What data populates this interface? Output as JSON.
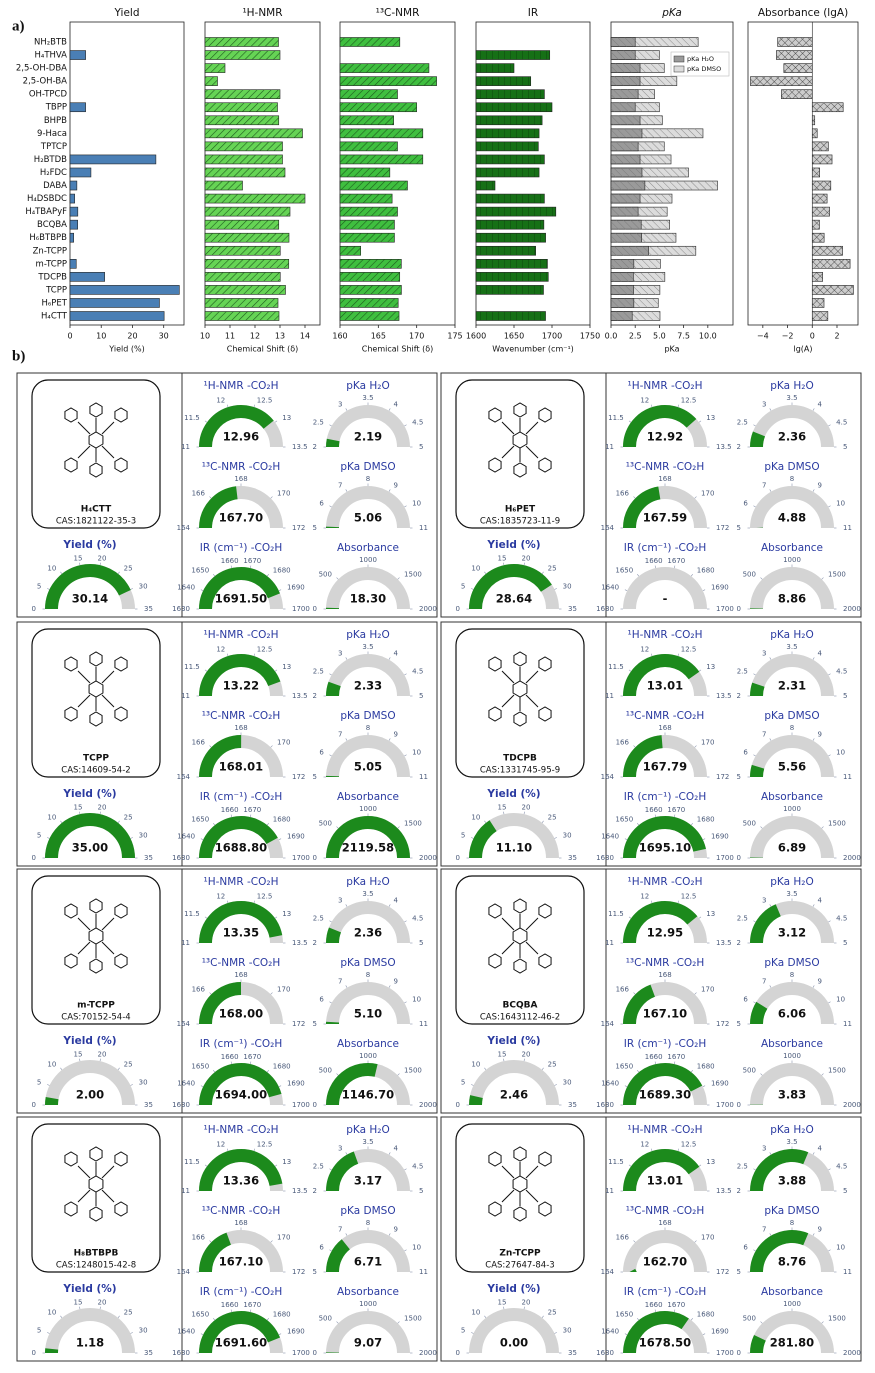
{
  "figure_labels": {
    "a": "a)",
    "b": "b)"
  },
  "chart_data": [
    {
      "type": "barh",
      "title": "Yield",
      "xlabel": "Yield (%)",
      "categories": [
        "NH₂BTB",
        "H₄THVA",
        "2,5-OH-DBA",
        "2,5-OH-BA",
        "OH-TPCD",
        "TBPP",
        "BHPB",
        "9-Haca",
        "TPTCP",
        "H₂BTDB",
        "H₂FDC",
        "DABA",
        "H₄DSBDC",
        "H₄TBAPyF",
        "BCQBA",
        "H₆BTBPB",
        "Zn-TCPP",
        "m-TCPP",
        "TDCPB",
        "TCPP",
        "H₆PET",
        "H₄CTT"
      ],
      "values": [
        0,
        5,
        0,
        0,
        0,
        5,
        0,
        0,
        0,
        27.5,
        6.7,
        2.2,
        1.5,
        2.5,
        2.46,
        1.18,
        0,
        2,
        11.1,
        35,
        28.64,
        30.14
      ],
      "color": "#4a7fb5",
      "xlim": [
        0,
        36.5
      ],
      "xticks": [
        0,
        10,
        20,
        30
      ]
    },
    {
      "type": "barh",
      "title": "¹H-NMR",
      "xlabel": "Chemical Shift (δ)",
      "values": [
        12.94,
        13,
        10.8,
        10.5,
        13,
        12.9,
        12.95,
        13.9,
        13.1,
        13.1,
        13.2,
        11.5,
        14,
        13.4,
        12.95,
        13.36,
        13.01,
        13.35,
        13.01,
        13.22,
        12.92,
        12.96
      ],
      "color": "#66d455",
      "hatch": "////",
      "xlim": [
        10,
        14.6
      ],
      "xticks": [
        10,
        11,
        12,
        13,
        14
      ]
    },
    {
      "type": "barh",
      "title": "¹³C-NMR",
      "xlabel": "Chemical Shift (δ)",
      "values": [
        167.8,
        null,
        171.6,
        172.6,
        167.5,
        170,
        167,
        170.8,
        167.5,
        170.8,
        166.5,
        168.8,
        166.8,
        167.5,
        167.1,
        167.1,
        162.7,
        168,
        167.79,
        168.01,
        167.59,
        167.7
      ],
      "color": "#3fbf3f",
      "hatch": "////",
      "xlim": [
        160,
        175
      ],
      "xticks": [
        160,
        165,
        170,
        175
      ]
    },
    {
      "type": "barh",
      "title": "IR",
      "xlabel": "Wavenumber (cm⁻¹)",
      "values": [
        null,
        1697,
        1650,
        1672,
        1690,
        1700,
        1687,
        1683,
        1682,
        1690,
        1683,
        1625,
        1690,
        1705,
        1689.3,
        1691.6,
        1678.5,
        1694,
        1695.1,
        1688.8,
        null,
        1691.5
      ],
      "color": "#167016",
      "hatch": "||",
      "xlim": [
        1600,
        1750
      ],
      "xticks": [
        1600,
        1650,
        1700,
        1750
      ]
    },
    {
      "type": "barh",
      "title": "pKa",
      "xlabel": "pKa",
      "legend": "upper right",
      "hatch": "\\\\",
      "series": [
        {
          "name": "pKa H₂O",
          "color": "#9a9a9a",
          "values": [
            2.5,
            2.5,
            3,
            3,
            2.8,
            2.5,
            3,
            3.2,
            2.8,
            3,
            3.2,
            3.5,
            3,
            2.8,
            3.12,
            3.17,
            3.88,
            2.36,
            2.31,
            2.33,
            2.36,
            2.19
          ]
        },
        {
          "name": "pKa DMSO",
          "color": "#dcdcdc",
          "values": [
            9,
            5,
            5.5,
            6.8,
            4.5,
            5,
            5.3,
            9.5,
            5.5,
            6.2,
            8,
            11,
            6.3,
            5.8,
            6.06,
            6.71,
            8.76,
            5.1,
            5.56,
            5.05,
            4.88,
            5.06
          ]
        }
      ],
      "xlim": [
        0,
        12.6
      ],
      "xticks": [
        {
          "value": 0,
          "label": "0.0"
        },
        {
          "value": 2.5,
          "label": "2.5"
        },
        {
          "value": 5,
          "label": "5.0"
        },
        {
          "value": 7.5,
          "label": "7.5"
        },
        {
          "value": 10,
          "label": "10.0"
        }
      ]
    },
    {
      "type": "barh",
      "title": "Absorbance (lgA)",
      "xlabel": "lg(A)",
      "values": [
        -2.8,
        -2.9,
        -2.3,
        -5,
        -2.5,
        2.5,
        0.2,
        0.4,
        1.3,
        1.6,
        0.6,
        1.5,
        1.2,
        1.4,
        0.58,
        0.96,
        2.45,
        3.06,
        0.84,
        3.33,
        0.95,
        1.26
      ],
      "color": "#cccccc",
      "hatch": "xx",
      "xlim": [
        -5.2,
        3.7
      ],
      "xticks": [
        {
          "value": -4,
          "label": "−4"
        },
        {
          "value": -2,
          "label": "−2"
        },
        0,
        2
      ]
    }
  ],
  "gauge_scales": [
    {
      "title": "¹H-NMR -CO₂H",
      "lim": [
        11,
        13.5
      ],
      "ticks": [
        11,
        11.5,
        12,
        12.5,
        13,
        13.5
      ]
    },
    {
      "title": "pKa H₂O",
      "lim": [
        2,
        5
      ],
      "ticks": [
        2,
        2.5,
        3,
        3.5,
        4,
        4.5,
        5
      ]
    },
    {
      "title": "¹³C-NMR -CO₂H",
      "lim": [
        164,
        172
      ],
      "ticks": [
        164,
        166,
        168,
        170,
        172
      ]
    },
    {
      "title": "pKa DMSO",
      "lim": [
        5,
        11
      ],
      "ticks": [
        5,
        6,
        7,
        8,
        9,
        10,
        11
      ]
    },
    {
      "title": "IR (cm⁻¹) -CO₂H",
      "lim": [
        1630,
        1700
      ],
      "ticks": [
        1630,
        1640,
        1650,
        1660,
        1670,
        1680,
        1690,
        1700
      ]
    },
    {
      "title": "Absorbance",
      "lim": [
        0,
        2000
      ],
      "ticks": [
        0,
        500,
        1000,
        1500,
        2000
      ]
    },
    {
      "title": "Yield (%)",
      "lim": [
        0,
        35
      ],
      "ticks": [
        0,
        5,
        10,
        15,
        20,
        25,
        30,
        35
      ]
    }
  ],
  "panels": [
    {
      "name": "H₄CTT",
      "cas": "CAS:1821122-35-3",
      "values": [
        12.96,
        2.19,
        167.7,
        5.06,
        1691.5,
        18.3,
        30.14
      ],
      "value_labels": [
        "12.96",
        "2.19",
        "167.70",
        "5.06",
        "1691.50",
        "18.30",
        "30.14"
      ]
    },
    {
      "name": "H₆PET",
      "cas": "CAS:1835723-11-9",
      "values": [
        12.92,
        2.36,
        167.59,
        4.88,
        null,
        8.86,
        28.64
      ],
      "value_labels": [
        "12.92",
        "2.36",
        "167.59",
        "4.88",
        "-",
        "8.86",
        "28.64"
      ]
    },
    {
      "name": "TCPP",
      "cas": "CAS:14609-54-2",
      "values": [
        13.22,
        2.33,
        168.01,
        5.05,
        1688.8,
        2119.58,
        35
      ],
      "value_labels": [
        "13.22",
        "2.33",
        "168.01",
        "5.05",
        "1688.80",
        "2119.58",
        "35.00"
      ]
    },
    {
      "name": "TDCPB",
      "cas": "CAS:1331745-95-9",
      "values": [
        13.01,
        2.31,
        167.79,
        5.56,
        1695.1,
        6.89,
        11.1
      ],
      "value_labels": [
        "13.01",
        "2.31",
        "167.79",
        "5.56",
        "1695.10",
        "6.89",
        "11.10"
      ]
    },
    {
      "name": "m-TCPP",
      "cas": "CAS:70152-54-4",
      "values": [
        13.35,
        2.36,
        168,
        5.1,
        1694,
        1146.7,
        2
      ],
      "value_labels": [
        "13.35",
        "2.36",
        "168.00",
        "5.10",
        "1694.00",
        "1146.70",
        "2.00"
      ]
    },
    {
      "name": "BCQBA",
      "cas": "CAS:1643112-46-2",
      "values": [
        12.95,
        3.12,
        167.1,
        6.06,
        1689.3,
        3.83,
        2.46
      ],
      "value_labels": [
        "12.95",
        "3.12",
        "167.10",
        "6.06",
        "1689.30",
        "3.83",
        "2.46"
      ]
    },
    {
      "name": "H₈BTBPB",
      "cas": "CAS:1248015-42-8",
      "values": [
        13.36,
        3.17,
        167.1,
        6.71,
        1691.6,
        9.07,
        1.18
      ],
      "value_labels": [
        "13.36",
        "3.17",
        "167.10",
        "6.71",
        "1691.60",
        "9.07",
        "1.18"
      ]
    },
    {
      "name": "Zn-TCPP",
      "cas": "CAS:27647-84-3",
      "values": [
        13.01,
        3.88,
        162.7,
        8.76,
        1678.5,
        281.8,
        0
      ],
      "value_labels": [
        "13.01",
        "3.88",
        "162.70",
        "8.76",
        "1678.50",
        "281.80",
        "0.00"
      ]
    }
  ]
}
